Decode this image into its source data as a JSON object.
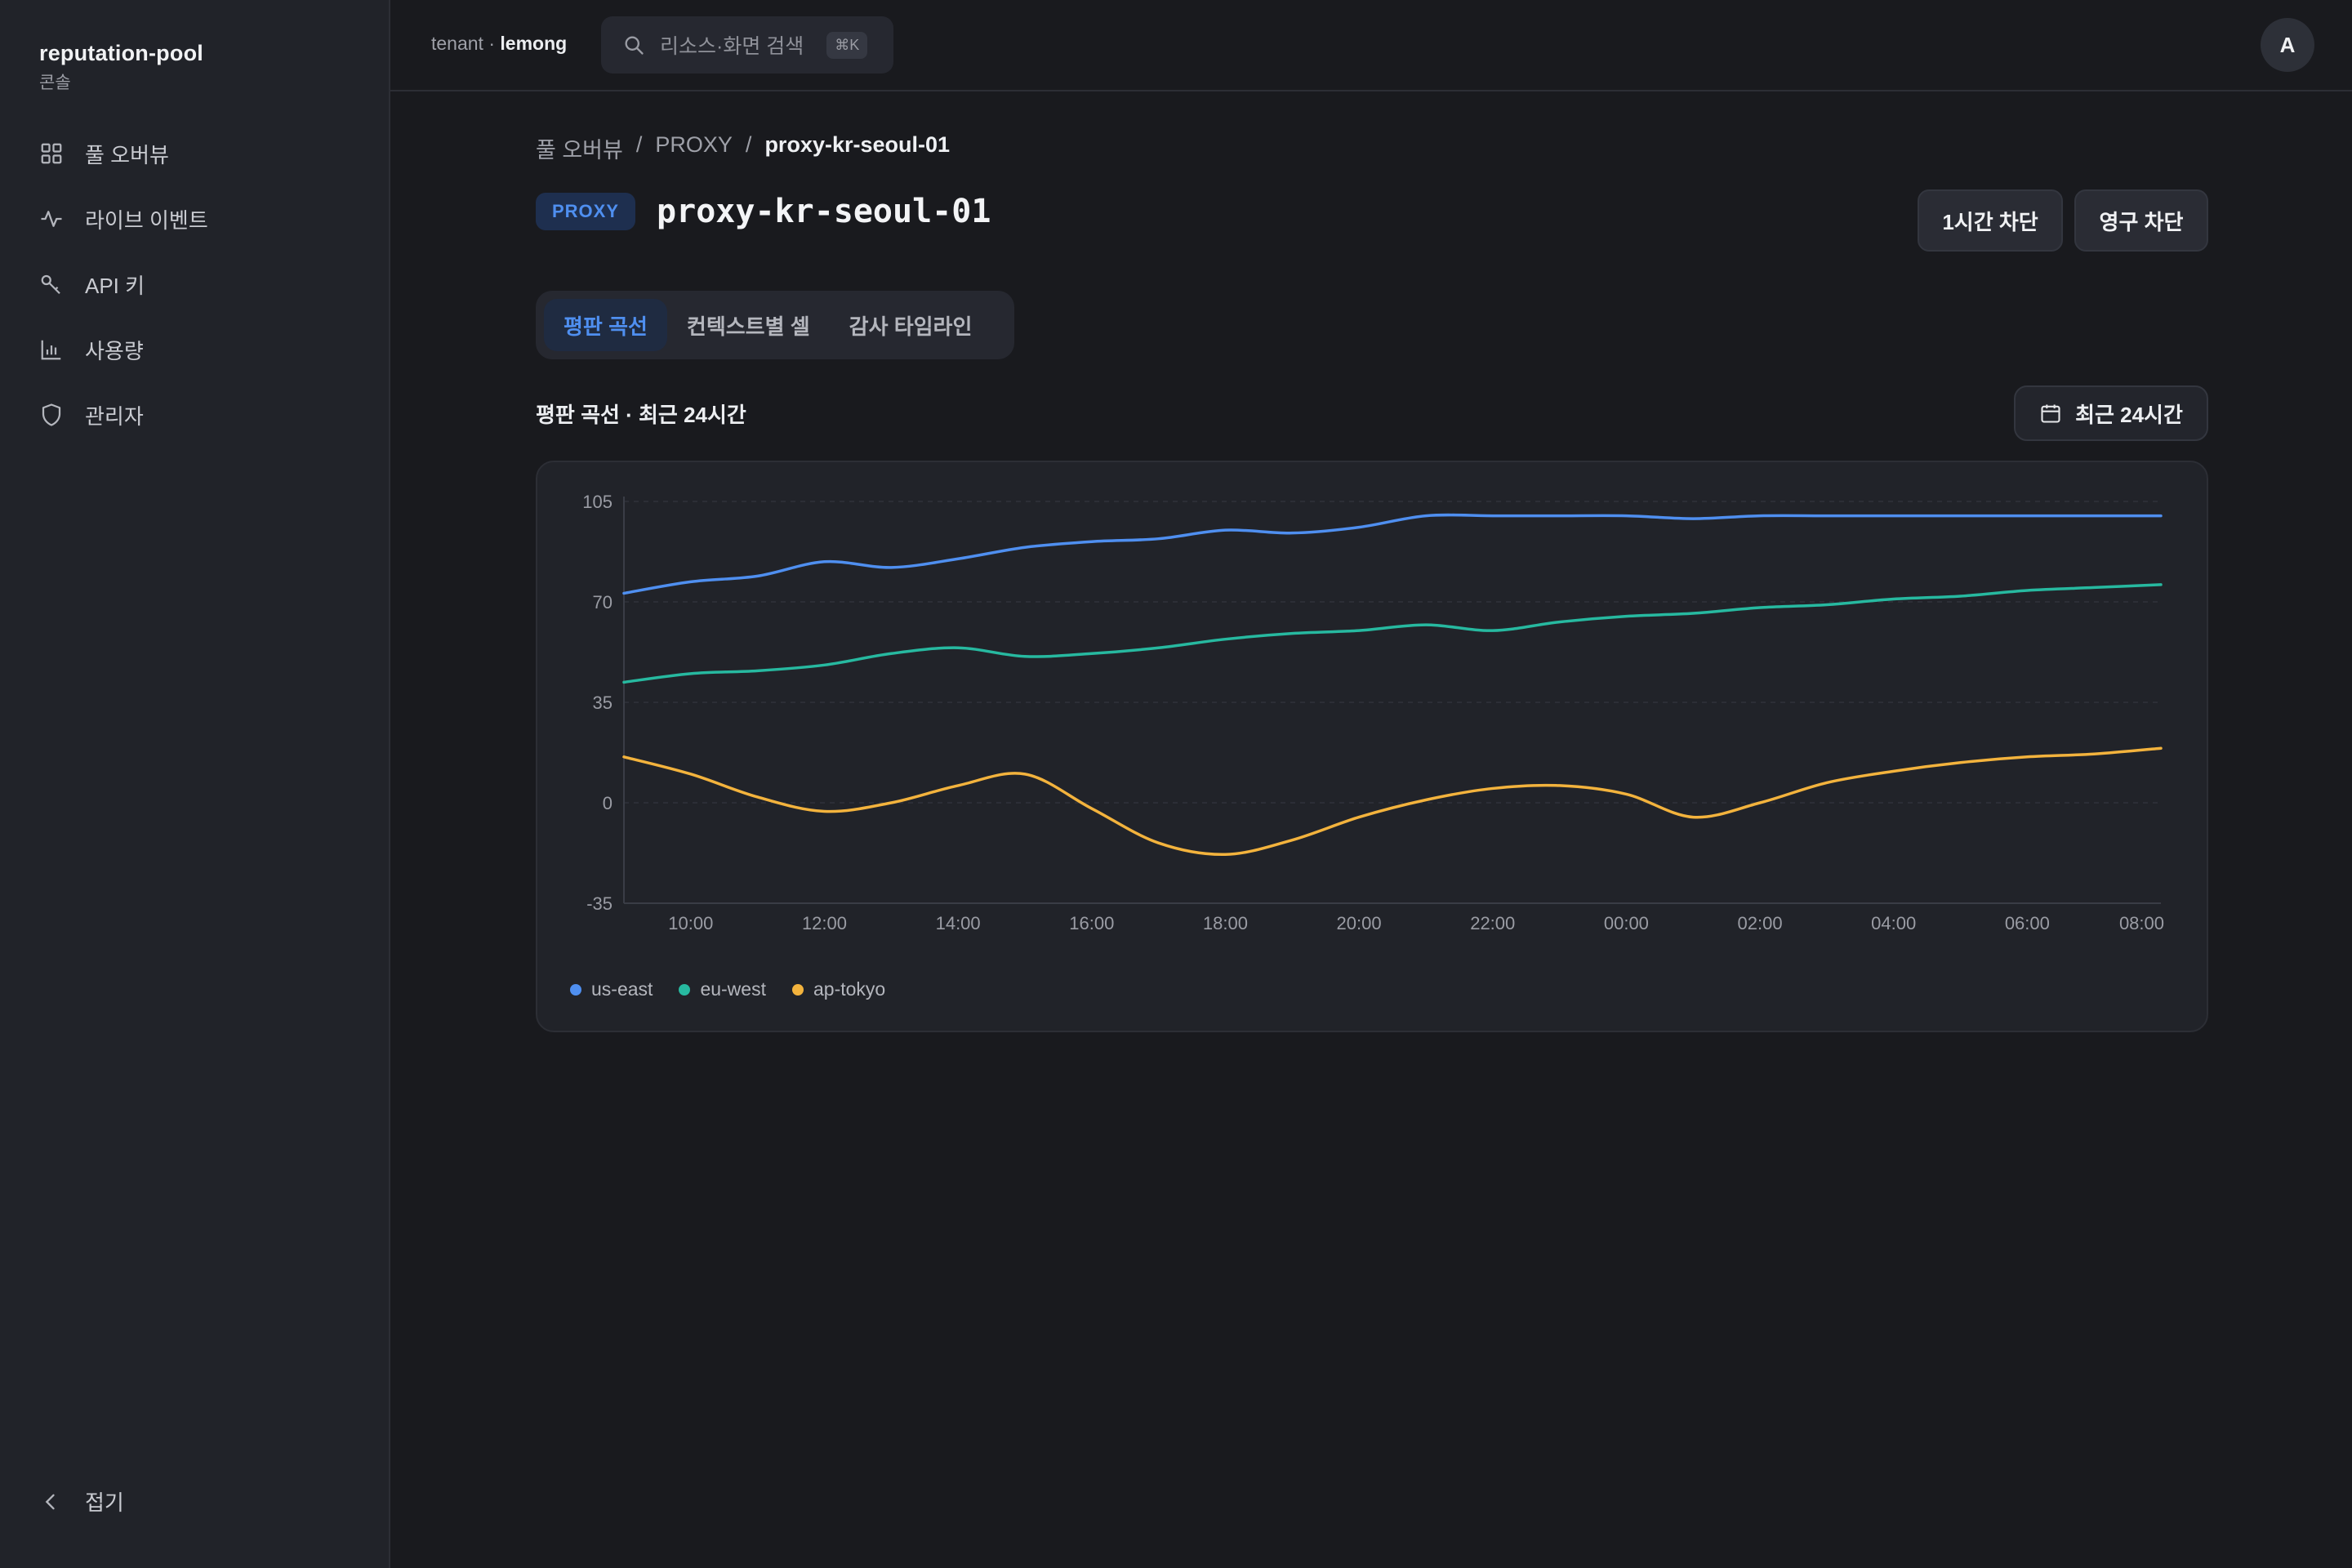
{
  "brand": {
    "name": "reputation-pool",
    "subtitle": "콘솔"
  },
  "sidebar": {
    "items": [
      {
        "label": "풀 오버뷰",
        "icon": "grid-icon"
      },
      {
        "label": "라이브 이벤트",
        "icon": "activity-icon"
      },
      {
        "label": "API 키",
        "icon": "key-icon"
      },
      {
        "label": "사용량",
        "icon": "bar-chart-icon"
      },
      {
        "label": "관리자",
        "icon": "shield-icon"
      }
    ],
    "collapse_label": "접기"
  },
  "topbar": {
    "tenant_prefix": "tenant · ",
    "tenant_name": "lemong",
    "search_placeholder": "리소스·화면 검색",
    "search_shortcut": "⌘K",
    "avatar_initial": "A"
  },
  "breadcrumb": {
    "root": "풀 오버뷰",
    "sep1": "/",
    "level1": "PROXY",
    "sep2": "/",
    "current": "proxy-kr-seoul-01"
  },
  "header": {
    "badge": "PROXY",
    "title": "proxy-kr-seoul-01",
    "block_1h_label": "1시간 차단",
    "block_permanent_label": "영구 차단"
  },
  "tabs": [
    {
      "label": "평판 곡선",
      "active": true
    },
    {
      "label": "컨텍스트별 셀",
      "active": false
    },
    {
      "label": "감사 타임라인",
      "active": false
    }
  ],
  "section": {
    "title": "평판 곡선 · 최근 24시간",
    "range_label": "최근 24시간"
  },
  "colors": {
    "accent": "#4f8ff0",
    "us_east": "#4f8ff0",
    "eu_west": "#27b9a0",
    "ap_tokyo": "#f3b33d"
  },
  "chart_data": {
    "type": "line",
    "title": "",
    "xlabel": "",
    "ylabel": "",
    "x": [
      "09:00",
      "10:00",
      "11:00",
      "12:00",
      "13:00",
      "14:00",
      "15:00",
      "16:00",
      "17:00",
      "18:00",
      "19:00",
      "20:00",
      "21:00",
      "22:00",
      "23:00",
      "00:00",
      "01:00",
      "02:00",
      "03:00",
      "04:00",
      "05:00",
      "06:00",
      "07:00",
      "08:00"
    ],
    "x_tick_labels": [
      "10:00",
      "12:00",
      "14:00",
      "16:00",
      "18:00",
      "20:00",
      "22:00",
      "00:00",
      "02:00",
      "04:00",
      "06:00",
      "08:00"
    ],
    "y_ticks": [
      105,
      70,
      35,
      0,
      -35
    ],
    "ylim": [
      -35,
      105
    ],
    "grid": true,
    "legend_position": "bottom-left",
    "series": [
      {
        "name": "us-east",
        "color": "#4f8ff0",
        "values": [
          73,
          77,
          79,
          84,
          82,
          85,
          89,
          91,
          92,
          95,
          94,
          96,
          100,
          100,
          100,
          100,
          99,
          100,
          100,
          100,
          100,
          100,
          100,
          100
        ]
      },
      {
        "name": "eu-west",
        "color": "#27b9a0",
        "values": [
          42,
          45,
          46,
          48,
          52,
          54,
          51,
          52,
          54,
          57,
          59,
          60,
          62,
          60,
          63,
          65,
          66,
          68,
          69,
          71,
          72,
          74,
          75,
          76
        ]
      },
      {
        "name": "ap-tokyo",
        "color": "#f3b33d",
        "values": [
          16,
          10,
          2,
          -3,
          0,
          6,
          10,
          -2,
          -14,
          -18,
          -13,
          -5,
          1,
          5,
          6,
          3,
          -5,
          0,
          7,
          11,
          14,
          16,
          17,
          19
        ]
      }
    ]
  }
}
